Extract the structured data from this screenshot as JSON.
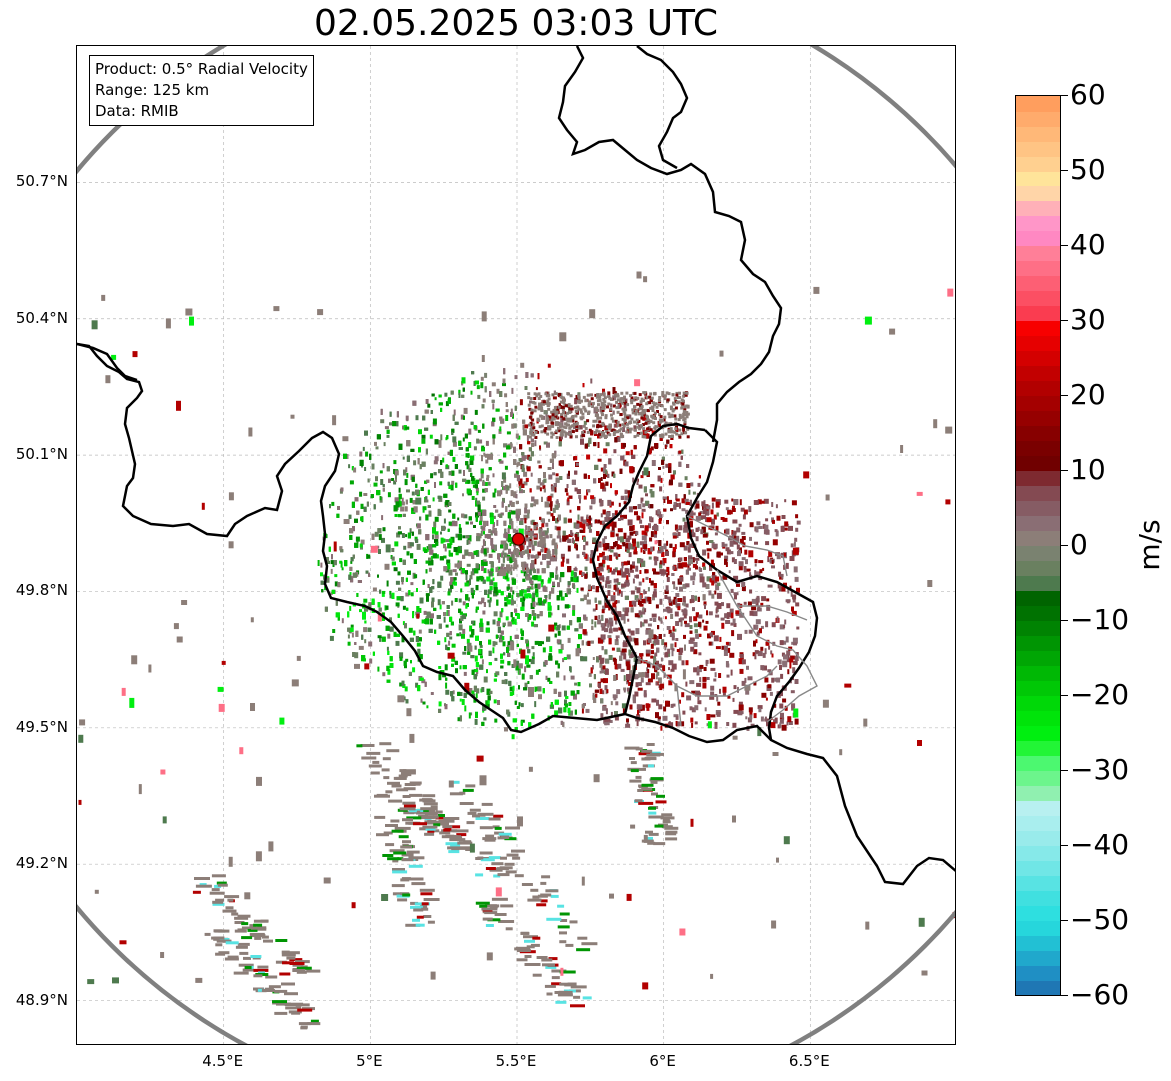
{
  "title": "02.05.2025 03:03 UTC",
  "info_box": {
    "product": "Product: 0.5° Radial Velocity",
    "range": "Range: 125 km",
    "data": "Data: RMIB"
  },
  "map": {
    "lon_range": [
      4.0,
      7.0
    ],
    "lat_range": [
      48.8,
      51.0
    ],
    "radar_site": {
      "lon": 5.505,
      "lat": 49.915
    },
    "y_ticks": [
      "50.7°N",
      "50.4°N",
      "50.1°N",
      "49.8°N",
      "49.5°N",
      "49.2°N",
      "48.9°N"
    ],
    "y_tick_values": [
      50.7,
      50.4,
      50.1,
      49.8,
      49.5,
      49.2,
      48.9
    ],
    "x_ticks": [
      "4.5°E",
      "5°E",
      "5.5°E",
      "6°E",
      "6.5°E"
    ],
    "x_tick_values": [
      4.5,
      5.0,
      5.5,
      6.0,
      6.5
    ],
    "grid": true,
    "range_ring_color": "#808080",
    "border_color": "#000000",
    "radar_marker_color": "#e00000"
  },
  "colorbar": {
    "unit": "m/s",
    "min": -60,
    "max": 60,
    "ticks": [
      "60",
      "50",
      "40",
      "30",
      "20",
      "10",
      "0",
      "−10",
      "−20",
      "−30",
      "−40",
      "−50",
      "−60"
    ],
    "tick_values": [
      60,
      50,
      40,
      30,
      20,
      10,
      0,
      -10,
      -20,
      -30,
      -40,
      -50,
      -60
    ],
    "bands": [
      {
        "from": -60,
        "to": -58,
        "color": "#1f77b4"
      },
      {
        "from": -58,
        "to": -56,
        "color": "#1f8fc4"
      },
      {
        "from": -56,
        "to": -54,
        "color": "#20a8cc"
      },
      {
        "from": -54,
        "to": -52,
        "color": "#22c0d4"
      },
      {
        "from": -52,
        "to": -50,
        "color": "#26d6dc"
      },
      {
        "from": -50,
        "to": -48,
        "color": "#2edfe0"
      },
      {
        "from": -48,
        "to": -46,
        "color": "#40e0e0"
      },
      {
        "from": -46,
        "to": -44,
        "color": "#58e3e3"
      },
      {
        "from": -44,
        "to": -42,
        "color": "#70e6e6"
      },
      {
        "from": -42,
        "to": -40,
        "color": "#86e9e9"
      },
      {
        "from": -40,
        "to": -38,
        "color": "#99ebeb"
      },
      {
        "from": -38,
        "to": -36,
        "color": "#a9eeee"
      },
      {
        "from": -36,
        "to": -34,
        "color": "#b8f0f0"
      },
      {
        "from": -34,
        "to": -32,
        "color": "#90f0b0"
      },
      {
        "from": -32,
        "to": -30,
        "color": "#6cf58c"
      },
      {
        "from": -30,
        "to": -28,
        "color": "#4cf870"
      },
      {
        "from": -28,
        "to": -26,
        "color": "#22f536"
      },
      {
        "from": -26,
        "to": -24,
        "color": "#00ef10"
      },
      {
        "from": -24,
        "to": -22,
        "color": "#00e40a"
      },
      {
        "from": -22,
        "to": -20,
        "color": "#00d808"
      },
      {
        "from": -20,
        "to": -18,
        "color": "#00c806"
      },
      {
        "from": -18,
        "to": -16,
        "color": "#00b805"
      },
      {
        "from": -16,
        "to": -14,
        "color": "#00a604"
      },
      {
        "from": -14,
        "to": -12,
        "color": "#009503"
      },
      {
        "from": -12,
        "to": -10,
        "color": "#008302"
      },
      {
        "from": -10,
        "to": -8,
        "color": "#007201"
      },
      {
        "from": -8,
        "to": -6,
        "color": "#006400"
      },
      {
        "from": -6,
        "to": -4,
        "color": "#4e7a4e"
      },
      {
        "from": -4,
        "to": -2,
        "color": "#6a8060"
      },
      {
        "from": -2,
        "to": 0,
        "color": "#7a8270"
      },
      {
        "from": 0,
        "to": 2,
        "color": "#8c7e78"
      },
      {
        "from": 2,
        "to": 4,
        "color": "#8a6e74"
      },
      {
        "from": 4,
        "to": 6,
        "color": "#865c64"
      },
      {
        "from": 6,
        "to": 8,
        "color": "#844a52"
      },
      {
        "from": 8,
        "to": 10,
        "color": "#7e2a30"
      },
      {
        "from": 10,
        "to": 12,
        "color": "#700000"
      },
      {
        "from": 12,
        "to": 14,
        "color": "#7a0000"
      },
      {
        "from": 14,
        "to": 16,
        "color": "#870000"
      },
      {
        "from": 16,
        "to": 18,
        "color": "#960000"
      },
      {
        "from": 18,
        "to": 20,
        "color": "#a40000"
      },
      {
        "from": 20,
        "to": 22,
        "color": "#b20000"
      },
      {
        "from": 22,
        "to": 24,
        "color": "#c20000"
      },
      {
        "from": 24,
        "to": 26,
        "color": "#d40000"
      },
      {
        "from": 26,
        "to": 28,
        "color": "#e60000"
      },
      {
        "from": 28,
        "to": 30,
        "color": "#f70000"
      },
      {
        "from": 30,
        "to": 32,
        "color": "#fa3c50"
      },
      {
        "from": 32,
        "to": 34,
        "color": "#fc4f63"
      },
      {
        "from": 34,
        "to": 36,
        "color": "#fd5f74"
      },
      {
        "from": 36,
        "to": 38,
        "color": "#fe6f86"
      },
      {
        "from": 38,
        "to": 40,
        "color": "#ff7f98"
      },
      {
        "from": 40,
        "to": 42,
        "color": "#ff88c2"
      },
      {
        "from": 42,
        "to": 44,
        "color": "#ff96c8"
      },
      {
        "from": 44,
        "to": 46,
        "color": "#ffb0b8"
      },
      {
        "from": 46,
        "to": 48,
        "color": "#ffd5a8"
      },
      {
        "from": 48,
        "to": 50,
        "color": "#ffe49a"
      },
      {
        "from": 50,
        "to": 52,
        "color": "#ffd090"
      },
      {
        "from": 52,
        "to": 54,
        "color": "#ffc484"
      },
      {
        "from": 54,
        "to": 56,
        "color": "#ffb878"
      },
      {
        "from": 56,
        "to": 58,
        "color": "#ffab6c"
      },
      {
        "from": 58,
        "to": 60,
        "color": "#ff9e5e"
      }
    ]
  }
}
